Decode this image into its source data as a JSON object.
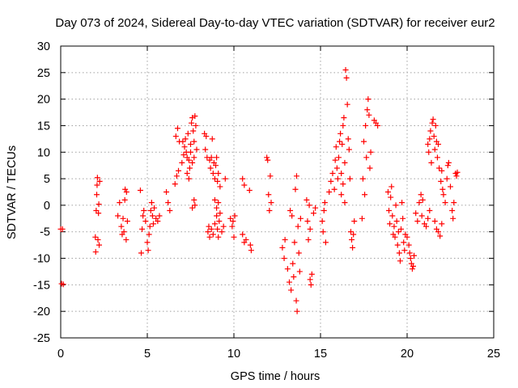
{
  "chart_data": {
    "type": "scatter",
    "title": "Day 073 of 2024, Sidereal Day-to-day VTEC variation (SDTVAR) for receiver eur2",
    "xlabel": "GPS time / hours",
    "ylabel": "SDTVAR / TECUs",
    "xlim": [
      0,
      25
    ],
    "ylim": [
      -25,
      30
    ],
    "xticks": [
      "0",
      "5",
      "10",
      "15",
      "20",
      "25"
    ],
    "yticks": [
      "-25",
      "-20",
      "-15",
      "-10",
      "-5",
      "0",
      "5",
      "10",
      "15",
      "20",
      "25",
      "30"
    ],
    "grid": true,
    "marker": "+",
    "color": "#ff0000",
    "series": [
      {
        "name": "SDTVAR",
        "points": [
          [
            0.0,
            -4.5
          ],
          [
            0.05,
            -14.8
          ],
          [
            0.1,
            -4.5
          ],
          [
            0.15,
            -14.9
          ],
          [
            2.0,
            -6.0
          ],
          [
            2.02,
            -8.8
          ],
          [
            2.05,
            -1.0
          ],
          [
            2.08,
            2.0
          ],
          [
            2.1,
            3.8
          ],
          [
            2.12,
            5.2
          ],
          [
            2.15,
            -6.5
          ],
          [
            2.18,
            -1.5
          ],
          [
            2.2,
            0.2
          ],
          [
            2.22,
            -7.5
          ],
          [
            2.25,
            4.5
          ],
          [
            3.3,
            -2.0
          ],
          [
            3.4,
            0.5
          ],
          [
            3.5,
            -4.0
          ],
          [
            3.55,
            -5.5
          ],
          [
            3.6,
            -2.5
          ],
          [
            3.65,
            -5.0
          ],
          [
            3.7,
            1.0
          ],
          [
            3.72,
            3.0
          ],
          [
            3.78,
            -6.5
          ],
          [
            3.8,
            2.5
          ],
          [
            3.85,
            -3.0
          ],
          [
            4.6,
            2.8
          ],
          [
            4.65,
            -9.0
          ],
          [
            4.7,
            -4.5
          ],
          [
            4.75,
            -2.0
          ],
          [
            4.8,
            -1.0
          ],
          [
            4.9,
            -3.0
          ],
          [
            5.0,
            -7.0
          ],
          [
            5.05,
            -8.5
          ],
          [
            5.1,
            -5.5
          ],
          [
            5.15,
            -4.0
          ],
          [
            5.2,
            -1.0
          ],
          [
            5.25,
            0.5
          ],
          [
            5.3,
            -2.0
          ],
          [
            5.35,
            -3.5
          ],
          [
            5.4,
            -0.5
          ],
          [
            5.5,
            -2.5
          ],
          [
            5.6,
            -3.0
          ],
          [
            5.7,
            -2.0
          ],
          [
            6.1,
            2.5
          ],
          [
            6.2,
            0.5
          ],
          [
            6.3,
            -1.0
          ],
          [
            6.6,
            4.0
          ],
          [
            6.65,
            13.0
          ],
          [
            6.7,
            5.5
          ],
          [
            6.75,
            14.5
          ],
          [
            6.8,
            6.5
          ],
          [
            6.85,
            12.0
          ],
          [
            7.0,
            8.0
          ],
          [
            7.05,
            12.0
          ],
          [
            7.1,
            9.5
          ],
          [
            7.15,
            11.0
          ],
          [
            7.2,
            12.5
          ],
          [
            7.25,
            10.0
          ],
          [
            7.3,
            9.0
          ],
          [
            7.35,
            13.5
          ],
          [
            7.4,
            8.5
          ],
          [
            7.45,
            7.0
          ],
          [
            7.5,
            11.5
          ],
          [
            7.55,
            15.5
          ],
          [
            7.6,
            16.5
          ],
          [
            7.65,
            14.0
          ],
          [
            7.7,
            12.0
          ],
          [
            7.75,
            16.8
          ],
          [
            7.8,
            15.0
          ],
          [
            7.85,
            10.5
          ],
          [
            7.3,
            6.0
          ],
          [
            7.4,
            5.0
          ],
          [
            7.5,
            10.0
          ],
          [
            7.6,
            8.0
          ],
          [
            7.7,
            9.0
          ],
          [
            7.6,
            -0.5
          ],
          [
            7.7,
            1.0
          ],
          [
            7.75,
            0.0
          ],
          [
            8.3,
            13.5
          ],
          [
            8.35,
            10.5
          ],
          [
            8.4,
            13.0
          ],
          [
            8.45,
            9.0
          ],
          [
            8.6,
            8.5
          ],
          [
            8.65,
            7.0
          ],
          [
            8.7,
            9.0
          ],
          [
            8.75,
            12.5
          ],
          [
            8.8,
            6.0
          ],
          [
            8.85,
            8.0
          ],
          [
            8.9,
            5.0
          ],
          [
            8.95,
            7.5
          ],
          [
            9.0,
            9.0
          ],
          [
            9.05,
            4.5
          ],
          [
            9.1,
            6.0
          ],
          [
            9.2,
            3.5
          ],
          [
            8.5,
            -5.0
          ],
          [
            8.55,
            -4.0
          ],
          [
            8.6,
            -6.0
          ],
          [
            8.7,
            -4.5
          ],
          [
            8.8,
            -5.5
          ],
          [
            8.9,
            -3.5
          ],
          [
            9.0,
            -2.0
          ],
          [
            9.05,
            -4.5
          ],
          [
            9.1,
            -6.0
          ],
          [
            9.15,
            -3.0
          ],
          [
            9.2,
            -1.5
          ],
          [
            9.3,
            -5.0
          ],
          [
            9.4,
            -4.0
          ],
          [
            9.5,
            5.0
          ],
          [
            8.9,
            1.0
          ],
          [
            9.0,
            -0.5
          ],
          [
            9.1,
            0.5
          ],
          [
            9.8,
            -2.5
          ],
          [
            9.9,
            -4.0
          ],
          [
            9.95,
            -3.0
          ],
          [
            10.0,
            -6.0
          ],
          [
            10.05,
            -2.0
          ],
          [
            10.5,
            -5.5
          ],
          [
            10.6,
            -7.0
          ],
          [
            10.7,
            -6.5
          ],
          [
            10.5,
            5.0
          ],
          [
            10.6,
            3.8
          ],
          [
            10.9,
            2.8
          ],
          [
            10.95,
            -7.5
          ],
          [
            11.0,
            -8.5
          ],
          [
            11.9,
            9.0
          ],
          [
            11.95,
            8.5
          ],
          [
            12.0,
            2.0
          ],
          [
            12.05,
            -1.0
          ],
          [
            12.1,
            5.5
          ],
          [
            12.15,
            0.5
          ],
          [
            12.8,
            -8.0
          ],
          [
            12.9,
            -10.0
          ],
          [
            12.95,
            -6.5
          ],
          [
            13.1,
            -12.0
          ],
          [
            13.2,
            -14.5
          ],
          [
            13.25,
            -1.0
          ],
          [
            13.3,
            -16.0
          ],
          [
            13.35,
            -2.0
          ],
          [
            13.4,
            -11.0
          ],
          [
            13.45,
            -13.5
          ],
          [
            13.5,
            -7.0
          ],
          [
            13.55,
            3.0
          ],
          [
            13.6,
            -18.0
          ],
          [
            13.62,
            5.5
          ],
          [
            13.65,
            -20.0
          ],
          [
            13.7,
            -4.0
          ],
          [
            13.75,
            -9.0
          ],
          [
            13.8,
            -12.5
          ],
          [
            13.85,
            -2.5
          ],
          [
            14.2,
            1.0
          ],
          [
            14.25,
            -3.0
          ],
          [
            14.3,
            -6.5
          ],
          [
            14.35,
            0.0
          ],
          [
            14.4,
            -4.5
          ],
          [
            14.4,
            -14.0
          ],
          [
            14.45,
            -15.0
          ],
          [
            14.5,
            -13.0
          ],
          [
            14.6,
            -1.5
          ],
          [
            14.7,
            -0.5
          ],
          [
            15.1,
            -3.0
          ],
          [
            15.15,
            -5.0
          ],
          [
            15.2,
            -1.0
          ],
          [
            15.25,
            0.5
          ],
          [
            15.3,
            -7.0
          ],
          [
            15.5,
            2.5
          ],
          [
            15.6,
            4.5
          ],
          [
            15.7,
            6.0
          ],
          [
            15.8,
            3.0
          ],
          [
            15.85,
            8.5
          ],
          [
            15.9,
            11.0
          ],
          [
            15.95,
            7.0
          ],
          [
            16.0,
            5.0
          ],
          [
            16.05,
            9.0
          ],
          [
            16.1,
            12.0
          ],
          [
            16.15,
            13.5
          ],
          [
            16.2,
            6.0
          ],
          [
            16.25,
            11.5
          ],
          [
            16.3,
            15.0
          ],
          [
            16.35,
            16.5
          ],
          [
            16.4,
            8.0
          ],
          [
            16.45,
            25.5
          ],
          [
            16.5,
            24.0
          ],
          [
            16.55,
            19.0
          ],
          [
            16.6,
            12.5
          ],
          [
            16.65,
            10.5
          ],
          [
            16.7,
            5.0
          ],
          [
            16.75,
            -5.0
          ],
          [
            16.8,
            -6.5
          ],
          [
            16.85,
            -8.0
          ],
          [
            16.9,
            -5.5
          ],
          [
            16.95,
            -3.0
          ],
          [
            16.2,
            2.0
          ],
          [
            16.3,
            4.0
          ],
          [
            16.4,
            0.5
          ],
          [
            17.4,
            -2.5
          ],
          [
            17.45,
            5.0
          ],
          [
            17.5,
            12.0
          ],
          [
            17.55,
            2.0
          ],
          [
            17.6,
            15.0
          ],
          [
            17.65,
            9.0
          ],
          [
            17.7,
            18.0
          ],
          [
            17.75,
            20.0
          ],
          [
            17.8,
            17.0
          ],
          [
            17.85,
            7.0
          ],
          [
            17.9,
            10.0
          ],
          [
            18.1,
            16.0
          ],
          [
            18.2,
            15.5
          ],
          [
            18.3,
            15.0
          ],
          [
            18.9,
            2.5
          ],
          [
            18.95,
            -1.0
          ],
          [
            19.0,
            -3.5
          ],
          [
            19.05,
            1.5
          ],
          [
            19.1,
            3.5
          ],
          [
            19.15,
            -2.0
          ],
          [
            19.2,
            -5.5
          ],
          [
            19.25,
            -4.0
          ],
          [
            19.3,
            -6.0
          ],
          [
            19.35,
            0.0
          ],
          [
            19.4,
            -3.0
          ],
          [
            19.45,
            -7.5
          ],
          [
            19.5,
            -5.0
          ],
          [
            19.55,
            -9.0
          ],
          [
            19.6,
            -10.5
          ],
          [
            19.65,
            -4.5
          ],
          [
            19.7,
            0.5
          ],
          [
            19.75,
            -2.5
          ],
          [
            19.8,
            -7.0
          ],
          [
            19.85,
            -8.5
          ],
          [
            19.9,
            -5.5
          ],
          [
            20.0,
            -6.0
          ],
          [
            20.1,
            -7.5
          ],
          [
            20.15,
            -9.0
          ],
          [
            20.2,
            -10.0
          ],
          [
            20.25,
            -11.0
          ],
          [
            20.3,
            -12.0
          ],
          [
            20.35,
            -11.5
          ],
          [
            20.4,
            -9.5
          ],
          [
            20.5,
            -1.5
          ],
          [
            20.6,
            -3.0
          ],
          [
            20.7,
            0.5
          ],
          [
            20.8,
            2.0
          ],
          [
            20.85,
            -2.0
          ],
          [
            20.9,
            1.0
          ],
          [
            21.0,
            -3.5
          ],
          [
            21.1,
            -4.0
          ],
          [
            21.2,
            -2.5
          ],
          [
            21.3,
            -1.0
          ],
          [
            21.2,
            11.5
          ],
          [
            21.25,
            10.0
          ],
          [
            21.3,
            12.5
          ],
          [
            21.35,
            14.0
          ],
          [
            21.4,
            8.0
          ],
          [
            21.45,
            15.5
          ],
          [
            21.5,
            16.2
          ],
          [
            21.55,
            13.0
          ],
          [
            21.6,
            10.5
          ],
          [
            21.65,
            15.0
          ],
          [
            21.7,
            12.0
          ],
          [
            21.75,
            9.0
          ],
          [
            21.8,
            11.5
          ],
          [
            21.85,
            7.0
          ],
          [
            21.6,
            -3.0
          ],
          [
            21.7,
            -4.5
          ],
          [
            21.8,
            -5.0
          ],
          [
            21.9,
            -5.8
          ],
          [
            22.0,
            -3.5
          ],
          [
            21.95,
            4.5
          ],
          [
            22.0,
            6.5
          ],
          [
            22.05,
            3.0
          ],
          [
            22.1,
            2.0
          ],
          [
            22.2,
            0.5
          ],
          [
            22.3,
            5.0
          ],
          [
            22.35,
            7.5
          ],
          [
            22.4,
            8.0
          ],
          [
            22.5,
            3.5
          ],
          [
            22.6,
            -1.0
          ],
          [
            22.65,
            -2.5
          ],
          [
            22.7,
            0.5
          ],
          [
            22.8,
            6.0
          ],
          [
            22.85,
            5.5
          ],
          [
            22.9,
            6.2
          ]
        ]
      }
    ]
  }
}
